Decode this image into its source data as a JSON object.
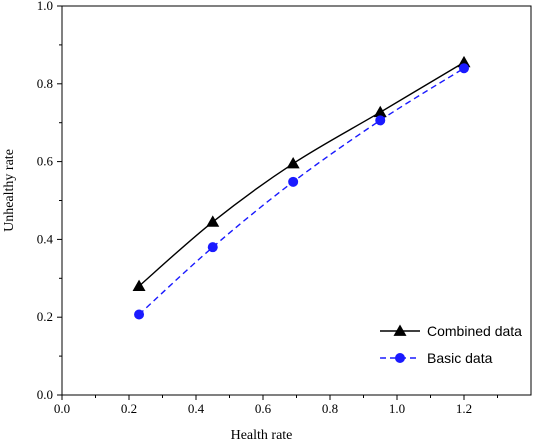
{
  "chart_data": {
    "type": "line",
    "title": "",
    "xlabel": "Health rate",
    "ylabel": "Unhealthy rate",
    "xlim": [
      0.0,
      1.4
    ],
    "ylim": [
      0.0,
      1.0
    ],
    "x_ticks": [
      0.0,
      0.2,
      0.4,
      0.6,
      0.8,
      1.0,
      1.2
    ],
    "x_tick_labels": [
      "0.0",
      "0.2",
      "0.4",
      "0.6",
      "0.8",
      "1.0",
      "1.2"
    ],
    "y_ticks": [
      0.0,
      0.2,
      0.4,
      0.6,
      0.8,
      1.0
    ],
    "y_tick_labels": [
      "0.0",
      "0.2",
      "0.4",
      "0.6",
      "0.8",
      "1.0"
    ],
    "grid": false,
    "legend_position": "bottom-right",
    "series": [
      {
        "name": "Combined data",
        "color": "#000000",
        "marker": "triangle",
        "line_style": "solid",
        "x": [
          0.23,
          0.45,
          0.69,
          0.95,
          1.2
        ],
        "y": [
          0.28,
          0.445,
          0.595,
          0.727,
          0.855
        ]
      },
      {
        "name": "Basic data",
        "color": "#1a1aff",
        "marker": "circle",
        "line_style": "dashed",
        "x": [
          0.23,
          0.45,
          0.69,
          0.95,
          1.2
        ],
        "y": [
          0.207,
          0.38,
          0.548,
          0.706,
          0.84
        ]
      }
    ]
  }
}
